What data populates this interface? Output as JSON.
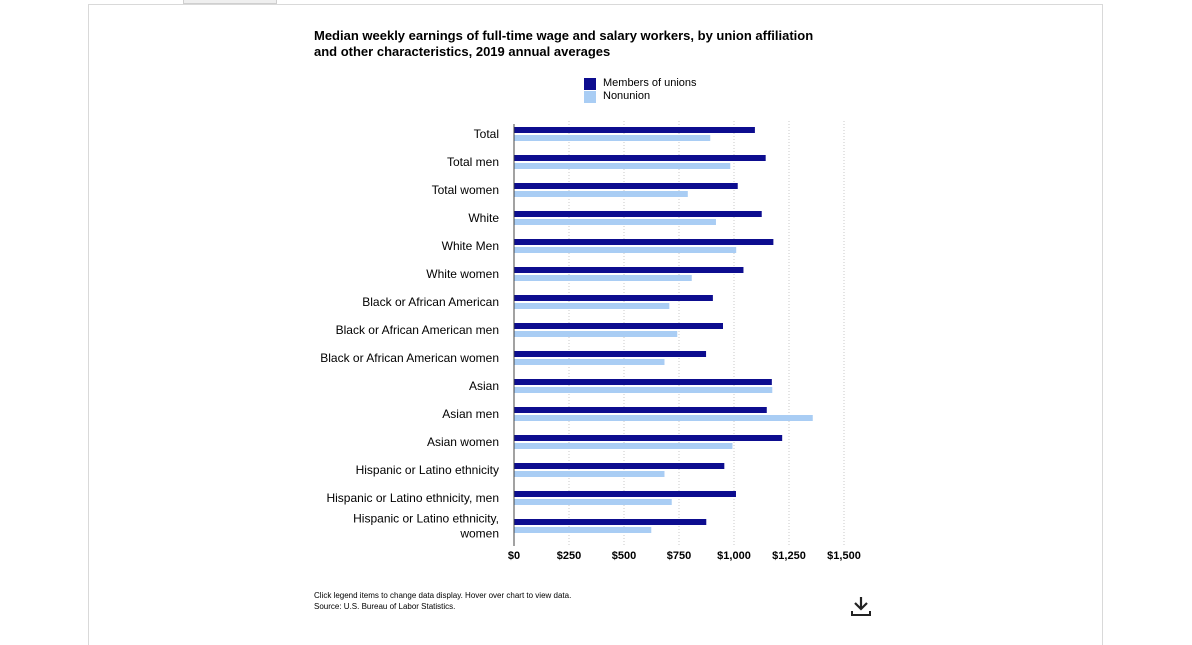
{
  "chart_data": {
    "type": "bar",
    "orientation": "horizontal",
    "title_lines": [
      "Median weekly earnings of full-time wage and salary workers, by union affiliation",
      "and other characteristics, 2019 annual averages"
    ],
    "categories": [
      "Total",
      "Total men",
      "Total women",
      "White",
      "White Men",
      "White women",
      "Black or African American",
      "Black or African American men",
      "Black or African American women",
      "Asian",
      "Asian men",
      "Asian women",
      "Hispanic or Latino ethnicity",
      "Hispanic or Latino ethnicity, men",
      "Hispanic or Latino ethnicity, women"
    ],
    "category_label_lines": {
      "14": [
        "Hispanic or Latino ethnicity,",
        "women"
      ]
    },
    "series": [
      {
        "name": "Members of unions",
        "color": "#0d0d8f",
        "values": [
          1095,
          1144,
          1017,
          1126,
          1179,
          1043,
          904,
          950,
          873,
          1172,
          1149,
          1219,
          956,
          1009,
          874
        ]
      },
      {
        "name": "Nonunion",
        "color": "#a9cdf4",
        "values": [
          892,
          983,
          790,
          918,
          1010,
          808,
          706,
          742,
          684,
          1174,
          1358,
          993,
          684,
          717,
          624
        ]
      }
    ],
    "x_ticks": [
      "$0",
      "$250",
      "$500",
      "$750",
      "$1,000",
      "$1,250",
      "$1,500"
    ],
    "xlim": [
      0,
      1500
    ],
    "grid": true,
    "legend_position": "top"
  },
  "footnote": {
    "line1": "Click legend items to change data display. Hover over chart to view data.",
    "line2": "Source: U.S. Bureau of Labor Statistics."
  },
  "icons": {
    "download": "download-icon"
  }
}
